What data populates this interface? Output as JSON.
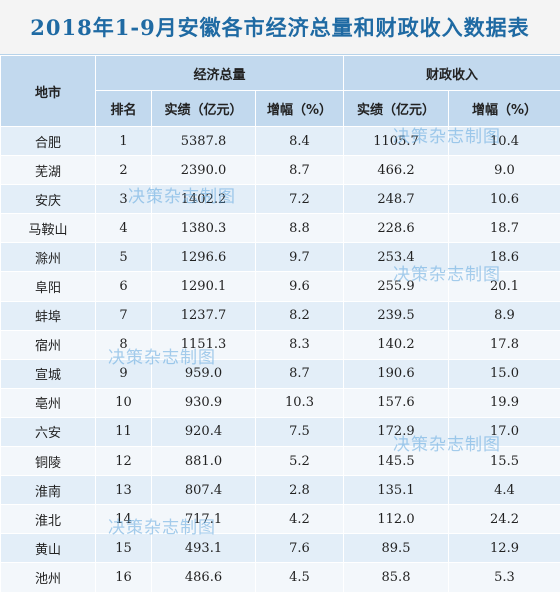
{
  "title": "2018年1-9月安徽各市经济总量和财政收入数据表",
  "headers": {
    "city": "地市",
    "economy": "经济总量",
    "revenue": "财政收入",
    "rank": "排名",
    "economy_value": "实绩（亿元）",
    "economy_growth": "增幅（%）",
    "revenue_value": "实绩（亿元）",
    "revenue_growth": "增幅（%）"
  },
  "rows": [
    {
      "city": "合肥",
      "rank": "1",
      "gdp": "5387.8",
      "gdp_growth": "8.4",
      "revenue": "1105.7",
      "revenue_growth": "10.4"
    },
    {
      "city": "芜湖",
      "rank": "2",
      "gdp": "2390.0",
      "gdp_growth": "8.7",
      "revenue": "466.2",
      "revenue_growth": "9.0"
    },
    {
      "city": "安庆",
      "rank": "3",
      "gdp": "1402.2",
      "gdp_growth": "7.2",
      "revenue": "248.7",
      "revenue_growth": "10.6"
    },
    {
      "city": "马鞍山",
      "rank": "4",
      "gdp": "1380.3",
      "gdp_growth": "8.8",
      "revenue": "228.6",
      "revenue_growth": "18.7"
    },
    {
      "city": "滁州",
      "rank": "5",
      "gdp": "1296.6",
      "gdp_growth": "9.7",
      "revenue": "253.4",
      "revenue_growth": "18.6"
    },
    {
      "city": "阜阳",
      "rank": "6",
      "gdp": "1290.1",
      "gdp_growth": "9.6",
      "revenue": "255.9",
      "revenue_growth": "20.1"
    },
    {
      "city": "蚌埠",
      "rank": "7",
      "gdp": "1237.7",
      "gdp_growth": "8.2",
      "revenue": "239.5",
      "revenue_growth": "8.9"
    },
    {
      "city": "宿州",
      "rank": "8",
      "gdp": "1151.3",
      "gdp_growth": "8.3",
      "revenue": "140.2",
      "revenue_growth": "17.8"
    },
    {
      "city": "宣城",
      "rank": "9",
      "gdp": "959.0",
      "gdp_growth": "8.7",
      "revenue": "190.6",
      "revenue_growth": "15.0"
    },
    {
      "city": "亳州",
      "rank": "10",
      "gdp": "930.9",
      "gdp_growth": "10.3",
      "revenue": "157.6",
      "revenue_growth": "19.9"
    },
    {
      "city": "六安",
      "rank": "11",
      "gdp": "920.4",
      "gdp_growth": "7.5",
      "revenue": "172.9",
      "revenue_growth": "17.0"
    },
    {
      "city": "铜陵",
      "rank": "12",
      "gdp": "881.0",
      "gdp_growth": "5.2",
      "revenue": "145.5",
      "revenue_growth": "15.5"
    },
    {
      "city": "淮南",
      "rank": "13",
      "gdp": "807.4",
      "gdp_growth": "2.8",
      "revenue": "135.1",
      "revenue_growth": "4.4"
    },
    {
      "city": "淮北",
      "rank": "14",
      "gdp": "717.1",
      "gdp_growth": "4.2",
      "revenue": "112.0",
      "revenue_growth": "24.2"
    },
    {
      "city": "黄山",
      "rank": "15",
      "gdp": "493.1",
      "gdp_growth": "7.6",
      "revenue": "89.5",
      "revenue_growth": "12.9"
    },
    {
      "city": "池州",
      "rank": "16",
      "gdp": "486.6",
      "gdp_growth": "4.5",
      "revenue": "85.8",
      "revenue_growth": "5.3"
    }
  ],
  "watermark": "决策杂志制图",
  "colors": {
    "title": "#1f6aa3",
    "header_bg": "#c2d9ee",
    "row_dark": "#e3eef8",
    "row_light": "#f3f7fb",
    "watermark": "#60a8de"
  }
}
